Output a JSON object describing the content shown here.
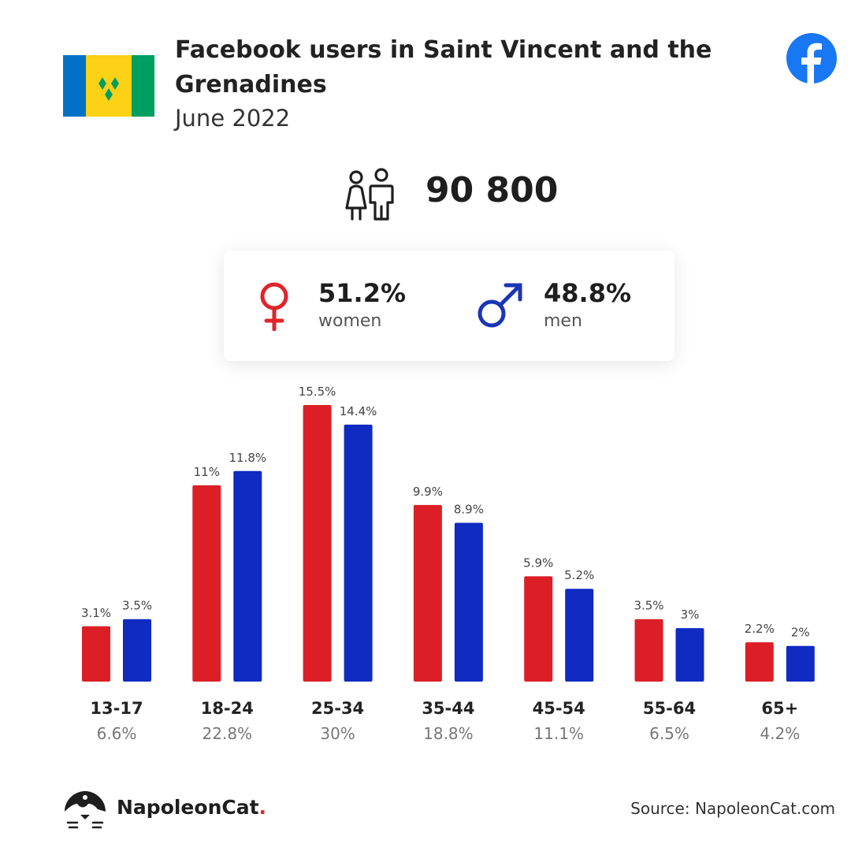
{
  "header": {
    "title": "Facebook users in Saint Vincent and the Grenadines",
    "subtitle": "June 2022"
  },
  "total_users": "90 800",
  "gender": {
    "women": {
      "percent": "51.2%",
      "label": "women",
      "color": "#e0242a"
    },
    "men": {
      "percent": "48.8%",
      "label": "men",
      "color": "#1a35b5"
    }
  },
  "colors": {
    "women_bar": "#dc1f26",
    "men_bar": "#0f2bc2",
    "facebook_blue": "#1877f2",
    "flag_blue": "#0072c6",
    "flag_yellow": "#fcd116",
    "flag_green": "#009e60"
  },
  "chart_data": {
    "type": "bar",
    "categories": [
      "13-17",
      "18-24",
      "25-34",
      "35-44",
      "45-54",
      "55-64",
      "65+"
    ],
    "category_totals": [
      "6.6%",
      "22.8%",
      "30%",
      "18.8%",
      "11.1%",
      "6.5%",
      "4.2%"
    ],
    "series": [
      {
        "name": "women",
        "values": [
          3.1,
          11,
          15.5,
          9.9,
          5.9,
          3.5,
          2.2
        ],
        "labels": [
          "3.1%",
          "11%",
          "15.5%",
          "9.9%",
          "5.9%",
          "3.5%",
          "2.2%"
        ]
      },
      {
        "name": "men",
        "values": [
          3.5,
          11.8,
          14.4,
          8.9,
          5.2,
          3,
          2
        ],
        "labels": [
          "3.5%",
          "11.8%",
          "14.4%",
          "8.9%",
          "5.2%",
          "3%",
          "2%"
        ]
      }
    ],
    "title": "",
    "xlabel": "",
    "ylabel": "",
    "ylim": [
      0,
      15.5
    ],
    "grid": false,
    "legend": "none"
  },
  "footer": {
    "brand_name": "NapoleonCat",
    "brand_dot": ".",
    "source": "Source: NapoleonCat.com"
  }
}
